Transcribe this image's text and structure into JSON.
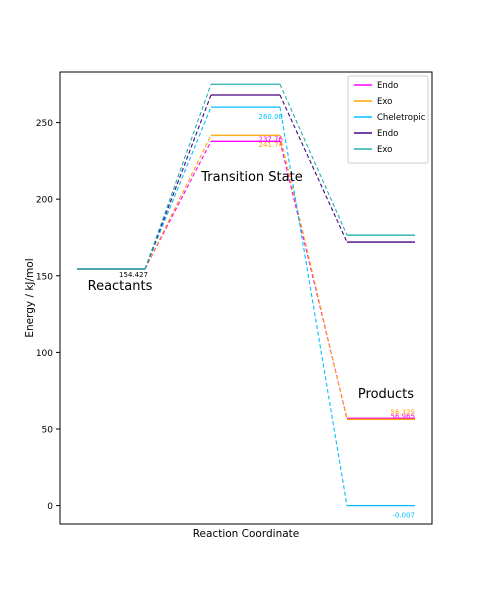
{
  "chart_data": {
    "type": "line",
    "xlabel": "Reaction Coordinate",
    "ylabel": "Energy / kJ/mol",
    "ylim": [
      -12,
      283
    ],
    "yticks": [
      0,
      50,
      100,
      150,
      200,
      250
    ],
    "legend_position": "top-right",
    "grid": false,
    "stage_labels": [
      "Reactants",
      "Transition State",
      "Products"
    ],
    "series": [
      {
        "name": "Endo",
        "color": "#ff00ff",
        "values": [
          154.427,
          237.76,
          56.965
        ],
        "labels": [
          "",
          "237.76",
          "56.965"
        ]
      },
      {
        "name": "Exo",
        "color": "#ffa500",
        "values": [
          154.427,
          241.74,
          56.325
        ],
        "labels": [
          "",
          "241.74",
          "56.325"
        ]
      },
      {
        "name": "Cheletropic",
        "color": "#00bfff",
        "values": [
          154.427,
          260.08,
          -0.007
        ],
        "labels": [
          "",
          "260.08",
          "-0.007"
        ]
      },
      {
        "name": "Endo",
        "color": "#4b0082",
        "values": [
          154.427,
          268,
          172
        ],
        "labels": [
          "",
          "",
          ""
        ]
      },
      {
        "name": "Exo",
        "color": "#20b2aa",
        "values": [
          154.427,
          275,
          176.5
        ],
        "labels": [
          "154.427",
          "",
          ""
        ]
      }
    ]
  }
}
